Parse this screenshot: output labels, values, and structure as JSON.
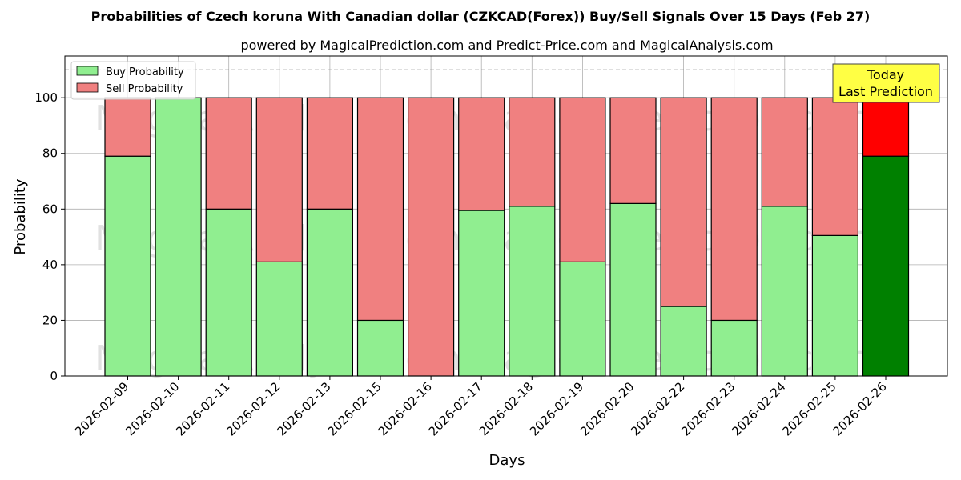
{
  "chart_data": {
    "type": "bar",
    "stacked": true,
    "title": "Probabilities of Czech koruna With Canadian dollar (CZKCAD(Forex)) Buy/Sell Signals Over 15 Days (Feb 27)",
    "subtitle": "powered by MagicalPrediction.com and Predict-Price.com and MagicalAnalysis.com",
    "xlabel": "Days",
    "ylabel": "Probability",
    "ylim": [
      0,
      115
    ],
    "yticks": [
      0,
      20,
      40,
      60,
      80,
      100
    ],
    "reference_line": 110,
    "grid": true,
    "legend_position": "top-left",
    "categories": [
      "2026-02-09",
      "2026-02-10",
      "2026-02-11",
      "2026-02-12",
      "2026-02-13",
      "2026-02-15",
      "2026-02-16",
      "2026-02-17",
      "2026-02-18",
      "2026-02-19",
      "2026-02-20",
      "2026-02-22",
      "2026-02-23",
      "2026-02-24",
      "2026-02-25",
      "2026-02-26"
    ],
    "series": [
      {
        "name": "Buy Probability",
        "color": "#90ee90",
        "values": [
          79,
          100,
          60,
          41,
          60,
          20,
          0,
          59.5,
          61,
          41,
          62,
          25,
          20,
          61,
          50.5,
          79
        ]
      },
      {
        "name": "Sell Probability",
        "color": "#f08080",
        "values": [
          21,
          0,
          40,
          59,
          40,
          80,
          100,
          40.5,
          39,
          59,
          38,
          75,
          80,
          39,
          49.5,
          21
        ]
      }
    ],
    "highlight": {
      "index": 15,
      "buy_color": "#008000",
      "sell_color": "#ff0000"
    },
    "annotation": {
      "lines": [
        "Today",
        "Last Prediction"
      ],
      "background": "#ffff44"
    },
    "watermarks": [
      "MagicalAnalysis.com",
      "MagicalPrediction.com"
    ]
  }
}
